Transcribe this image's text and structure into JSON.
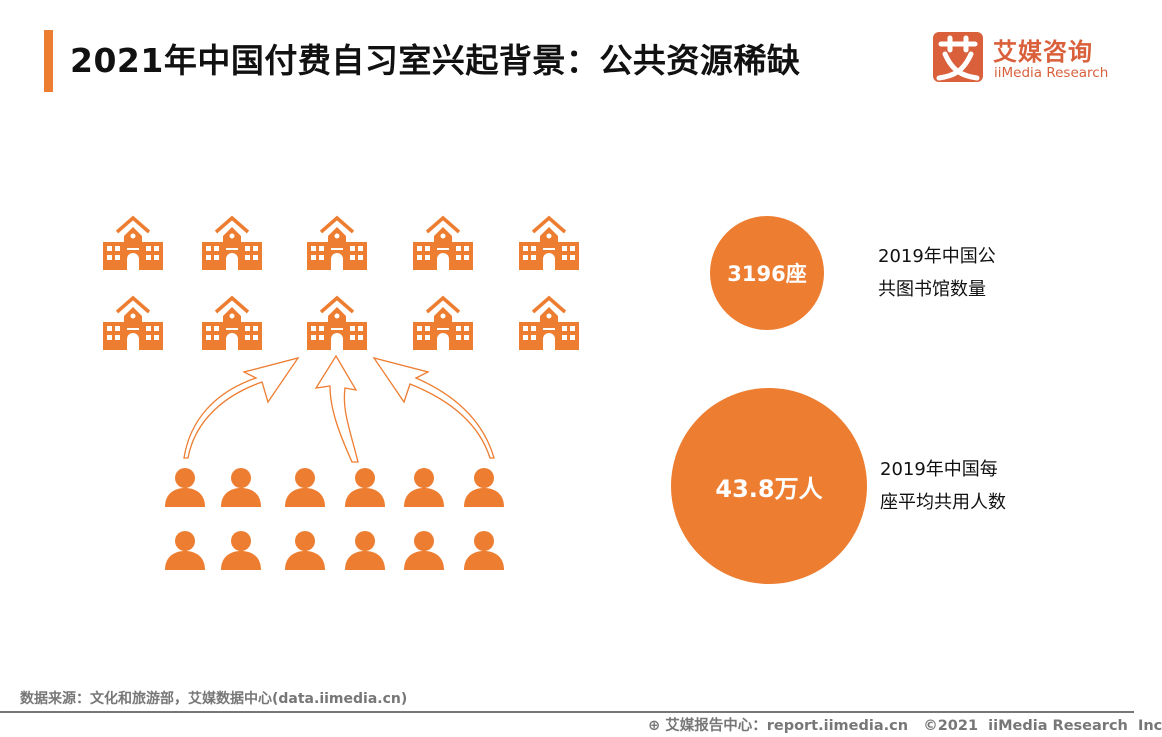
{
  "header": {
    "title": "2021年中国付费自习室兴起背景：公共资源稀缺",
    "accent_color": "#ed7d31"
  },
  "logo": {
    "mark": "艾",
    "name_cn": "艾媒咨询",
    "name_en": "iiMedia Research",
    "color": "#d9603b"
  },
  "illustration": {
    "building_icon": "school-building-icon",
    "building_count": 10,
    "person_icon": "person-icon",
    "person_count": 12,
    "arrow_icon": "curved-arrow-icon",
    "color": "#ed7d31"
  },
  "stats": [
    {
      "value": "3196座",
      "label_line1": "2019年中国公",
      "label_line2": "共图书馆数量"
    },
    {
      "value": "43.8万人",
      "label_line1": "2019年中国每",
      "label_line2": "座平均共用人数"
    }
  ],
  "source": "数据来源：文化和旅游部，艾媒数据中心(data.iimedia.cn)",
  "footer": {
    "text": "艾媒报告中心：report.iimedia.cn   ©2021  iiMedia Research  Inc",
    "icon": "globe-cursor-icon"
  }
}
